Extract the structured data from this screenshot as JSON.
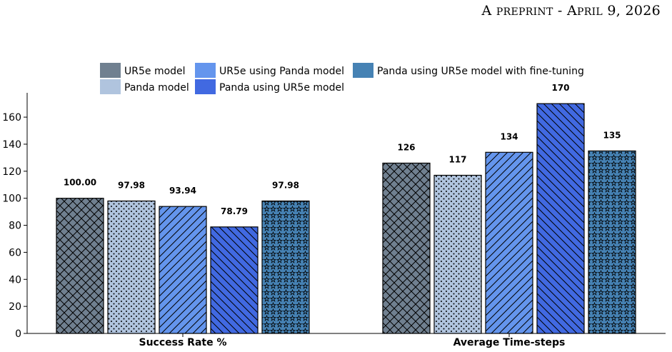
{
  "header": {
    "lead": "A",
    "small1": "PREPRINT",
    "sep": " - ",
    "cap": "A",
    "small2": "PRIL",
    "date_rest": " 9, 2026"
  },
  "chart_data": {
    "type": "bar",
    "categories": [
      "Success Rate %",
      "Average Time-steps"
    ],
    "series": [
      {
        "name": "UR5e model",
        "values": [
          100.0,
          126
        ],
        "labels": [
          "100.00",
          "126"
        ],
        "color": "#708090",
        "hatch": "crosshatch"
      },
      {
        "name": "Panda model",
        "values": [
          97.98,
          117
        ],
        "labels": [
          "97.98",
          "117"
        ],
        "color": "#b0c4de",
        "hatch": "dots"
      },
      {
        "name": "UR5e using Panda model",
        "values": [
          93.94,
          134
        ],
        "labels": [
          "93.94",
          "134"
        ],
        "color": "#6495ed",
        "hatch": "forward-diagonal"
      },
      {
        "name": "Panda using UR5e model",
        "values": [
          78.79,
          170
        ],
        "labels": [
          "78.79",
          "170"
        ],
        "color": "#4169e1",
        "hatch": "back-diagonal"
      },
      {
        "name": "Panda using UR5e model with fine-tuning",
        "values": [
          97.98,
          135
        ],
        "labels": [
          "97.98",
          "135"
        ],
        "color": "#4682b4",
        "hatch": "stars"
      }
    ],
    "ylim": [
      0,
      178
    ],
    "yticks": [
      "0",
      "20",
      "40",
      "60",
      "80",
      "100",
      "120",
      "140",
      "160"
    ],
    "legend_position": "top",
    "grid": false
  }
}
